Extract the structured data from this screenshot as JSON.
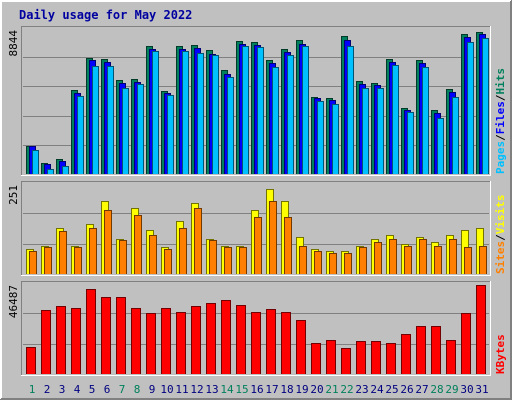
{
  "window": {
    "title": "Daily usage for May 2022"
  },
  "colors": {
    "background": "#c0c0c0",
    "title": "#0000a0",
    "hits": "#00805c",
    "files": "#0000ff",
    "pages": "#00c0ff",
    "visits": "#ffff00",
    "sites": "#ff8000",
    "kbytes": "#ff0000",
    "weekend_day": "#00805c",
    "weekday": "#000080"
  },
  "chart_data": [
    {
      "type": "bar",
      "title": "Daily usage for May 2022",
      "ymax_label": "8844",
      "ylim": [
        0,
        8844
      ],
      "grid": true,
      "legend": [
        {
          "name": "Pages",
          "color": "#00c0ff"
        },
        {
          "name": "/",
          "color": "#000000"
        },
        {
          "name": "Files",
          "color": "#0000ff"
        },
        {
          "name": "/",
          "color": "#000000"
        },
        {
          "name": "Hits",
          "color": "#00805c"
        }
      ],
      "categories": [
        "1",
        "2",
        "3",
        "4",
        "5",
        "6",
        "7",
        "8",
        "9",
        "10",
        "11",
        "12",
        "13",
        "14",
        "15",
        "16",
        "17",
        "18",
        "19",
        "20",
        "21",
        "22",
        "23",
        "24",
        "25",
        "26",
        "27",
        "28",
        "29",
        "30",
        "31"
      ],
      "series": [
        {
          "name": "Hits",
          "color": "#00805c",
          "values": [
            1750,
            700,
            900,
            5150,
            7150,
            7050,
            5800,
            5850,
            7850,
            5100,
            7850,
            7950,
            7600,
            6400,
            8150,
            8100,
            7000,
            7650,
            8200,
            4750,
            4650,
            8450,
            5700,
            5600,
            7050,
            4050,
            7000,
            3900,
            5200,
            8600,
            8700
          ]
        },
        {
          "name": "Files",
          "color": "#0000ff",
          "values": [
            1700,
            600,
            800,
            5000,
            7000,
            6850,
            5600,
            5650,
            7700,
            5000,
            7700,
            7750,
            7400,
            6150,
            8000,
            7950,
            6800,
            7500,
            8000,
            4650,
            4550,
            8200,
            5550,
            5450,
            6900,
            3950,
            6800,
            3750,
            5050,
            8400,
            8600
          ]
        },
        {
          "name": "Pages",
          "color": "#00c0ff",
          "values": [
            1500,
            300,
            500,
            4800,
            6650,
            6650,
            5300,
            5500,
            7550,
            4850,
            7550,
            7450,
            7300,
            5950,
            7850,
            7800,
            6550,
            7300,
            7850,
            4500,
            4300,
            7850,
            5300,
            5300,
            6700,
            3800,
            6550,
            3450,
            4750,
            8100,
            8350
          ]
        }
      ]
    },
    {
      "type": "bar",
      "ymax_label": "251",
      "ylim": [
        0,
        251
      ],
      "grid": true,
      "legend": [
        {
          "name": "Sites",
          "color": "#ff8000"
        },
        {
          "name": "/",
          "color": "#000000"
        },
        {
          "name": "Visits",
          "color": "#ffff00"
        }
      ],
      "categories": [
        "1",
        "2",
        "3",
        "4",
        "5",
        "6",
        "7",
        "8",
        "9",
        "10",
        "11",
        "12",
        "13",
        "14",
        "15",
        "16",
        "17",
        "18",
        "19",
        "20",
        "21",
        "22",
        "23",
        "24",
        "25",
        "26",
        "27",
        "28",
        "29",
        "30",
        "31"
      ],
      "series": [
        {
          "name": "Visits",
          "color": "#ffff00",
          "values": [
            70,
            78,
            130,
            80,
            140,
            205,
            100,
            185,
            125,
            75,
            150,
            200,
            100,
            80,
            80,
            180,
            240,
            205,
            105,
            70,
            65,
            65,
            80,
            100,
            110,
            85,
            105,
            90,
            110,
            125,
            130
          ]
        },
        {
          "name": "Sites",
          "color": "#ff8000",
          "values": [
            65,
            75,
            120,
            75,
            130,
            180,
            95,
            165,
            110,
            70,
            130,
            185,
            95,
            75,
            75,
            160,
            205,
            160,
            80,
            65,
            60,
            60,
            75,
            90,
            100,
            80,
            100,
            80,
            100,
            75,
            80
          ]
        }
      ]
    },
    {
      "type": "bar",
      "ymax_label": "46487",
      "ylim": [
        0,
        46487
      ],
      "grid": true,
      "legend": [
        {
          "name": "KBytes",
          "color": "#ff0000"
        }
      ],
      "categories": [
        "1",
        "2",
        "3",
        "4",
        "5",
        "6",
        "7",
        "8",
        "9",
        "10",
        "11",
        "12",
        "13",
        "14",
        "15",
        "16",
        "17",
        "18",
        "19",
        "20",
        "21",
        "22",
        "23",
        "24",
        "25",
        "26",
        "27",
        "28",
        "29",
        "30",
        "31"
      ],
      "series": [
        {
          "name": "KBytes",
          "color": "#ff0000",
          "values": [
            14000,
            33500,
            35500,
            34500,
            44500,
            40000,
            40000,
            34500,
            32000,
            34500,
            32500,
            35500,
            37000,
            38500,
            36000,
            32500,
            34000,
            32500,
            28000,
            16000,
            17500,
            13500,
            17000,
            17000,
            16000,
            21000,
            25000,
            25000,
            18000,
            32000,
            46487
          ]
        }
      ]
    }
  ],
  "x_axis": {
    "labels": [
      "1",
      "2",
      "3",
      "4",
      "5",
      "6",
      "7",
      "8",
      "9",
      "10",
      "11",
      "12",
      "13",
      "14",
      "15",
      "16",
      "17",
      "18",
      "19",
      "20",
      "21",
      "22",
      "23",
      "24",
      "25",
      "26",
      "27",
      "28",
      "29",
      "30",
      "31"
    ],
    "weekend": [
      true,
      false,
      false,
      false,
      false,
      false,
      true,
      true,
      false,
      false,
      false,
      false,
      false,
      true,
      true,
      false,
      false,
      false,
      false,
      false,
      true,
      true,
      false,
      false,
      false,
      false,
      false,
      true,
      true,
      false,
      false
    ]
  }
}
